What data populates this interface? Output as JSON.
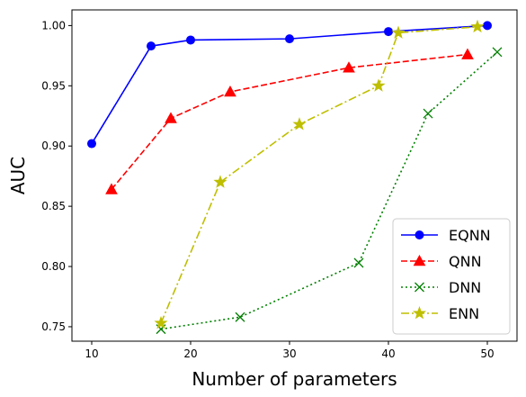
{
  "chart_data": {
    "type": "line",
    "xlabel": "Number of parameters",
    "ylabel": "AUC",
    "xlim": [
      8,
      53
    ],
    "ylim": [
      0.738,
      1.013
    ],
    "xticks": [
      10,
      20,
      30,
      40,
      50
    ],
    "yticks": [
      0.75,
      0.8,
      0.85,
      0.9,
      0.95,
      1.0
    ],
    "xtick_labels": [
      "10",
      "20",
      "30",
      "40",
      "50"
    ],
    "ytick_labels": [
      "0.75",
      "0.80",
      "0.85",
      "0.90",
      "0.95",
      "1.00"
    ],
    "grid": false,
    "legend_position": "lower-right",
    "series": [
      {
        "name": "EQNN",
        "color": "#0000ff",
        "dash": "solid",
        "marker": "circle",
        "x": [
          10,
          16,
          20,
          30,
          40,
          50
        ],
        "y": [
          0.902,
          0.983,
          0.988,
          0.989,
          0.995,
          1.0
        ]
      },
      {
        "name": "QNN",
        "color": "#ff0000",
        "dash": "dashed",
        "marker": "triangle",
        "x": [
          12,
          18,
          24,
          36,
          48
        ],
        "y": [
          0.864,
          0.923,
          0.945,
          0.965,
          0.976
        ]
      },
      {
        "name": "DNN",
        "color": "#008000",
        "dash": "dotted",
        "marker": "x",
        "x": [
          17,
          25,
          37,
          44,
          51
        ],
        "y": [
          0.748,
          0.758,
          0.803,
          0.927,
          0.978
        ]
      },
      {
        "name": "ENN",
        "color": "#bfbf00",
        "dash": "dashdot",
        "marker": "star",
        "x": [
          17,
          23,
          31,
          39,
          41,
          49
        ],
        "y": [
          0.753,
          0.87,
          0.918,
          0.95,
          0.994,
          0.999
        ]
      }
    ]
  }
}
